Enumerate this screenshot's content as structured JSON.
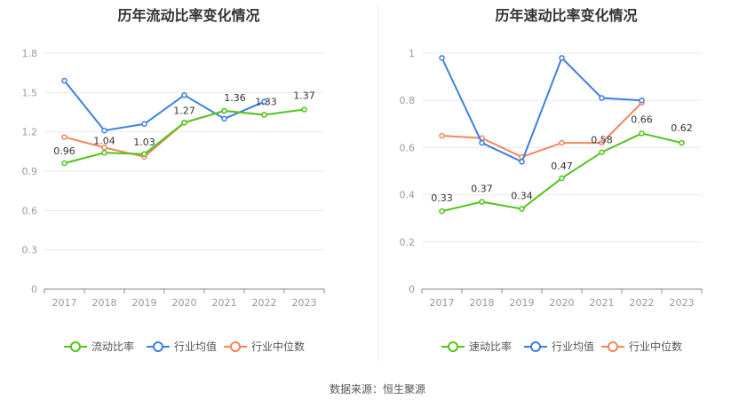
{
  "footer": {
    "source_text": "数据来源：恒生聚源"
  },
  "colors": {
    "main": "#52c41a",
    "industry_avg": "#3d7fe0",
    "industry_median": "#f0875a",
    "axis": "#999999",
    "grid": "#e6e9f0",
    "label": "#333333"
  },
  "chart_data": [
    {
      "type": "line",
      "title": "历年流动比率变化情况",
      "categories": [
        "2017",
        "2018",
        "2019",
        "2020",
        "2021",
        "2022",
        "2023"
      ],
      "ylim": [
        0,
        1.8
      ],
      "yticks": [
        "0",
        "0.3",
        "0.6",
        "0.9",
        "1.2",
        "1.5",
        "1.8"
      ],
      "series": [
        {
          "name": "流动比率",
          "values": [
            0.96,
            1.04,
            1.03,
            1.27,
            1.36,
            1.33,
            1.37
          ],
          "show_labels": true
        },
        {
          "name": "行业均值",
          "values": [
            1.59,
            1.21,
            1.26,
            1.48,
            1.3,
            1.43,
            null
          ]
        },
        {
          "name": "行业中位数",
          "values": [
            1.16,
            1.08,
            1.01,
            1.27,
            1.36,
            1.33,
            null
          ]
        }
      ],
      "legend": "bottom-center",
      "grid": true
    },
    {
      "type": "line",
      "title": "历年速动比率变化情况",
      "categories": [
        "2017",
        "2018",
        "2019",
        "2020",
        "2021",
        "2022",
        "2023"
      ],
      "ylim": [
        0,
        1
      ],
      "yticks": [
        "0",
        "0.2",
        "0.4",
        "0.6",
        "0.8",
        "1"
      ],
      "series": [
        {
          "name": "速动比率",
          "values": [
            0.33,
            0.37,
            0.34,
            0.47,
            0.58,
            0.66,
            0.62
          ],
          "show_labels": true
        },
        {
          "name": "行业均值",
          "values": [
            0.98,
            0.62,
            0.54,
            0.98,
            0.81,
            0.8,
            null
          ]
        },
        {
          "name": "行业中位数",
          "values": [
            0.65,
            0.64,
            0.56,
            0.62,
            0.62,
            0.79,
            null
          ]
        }
      ],
      "legend": "bottom-center",
      "grid": true
    }
  ]
}
